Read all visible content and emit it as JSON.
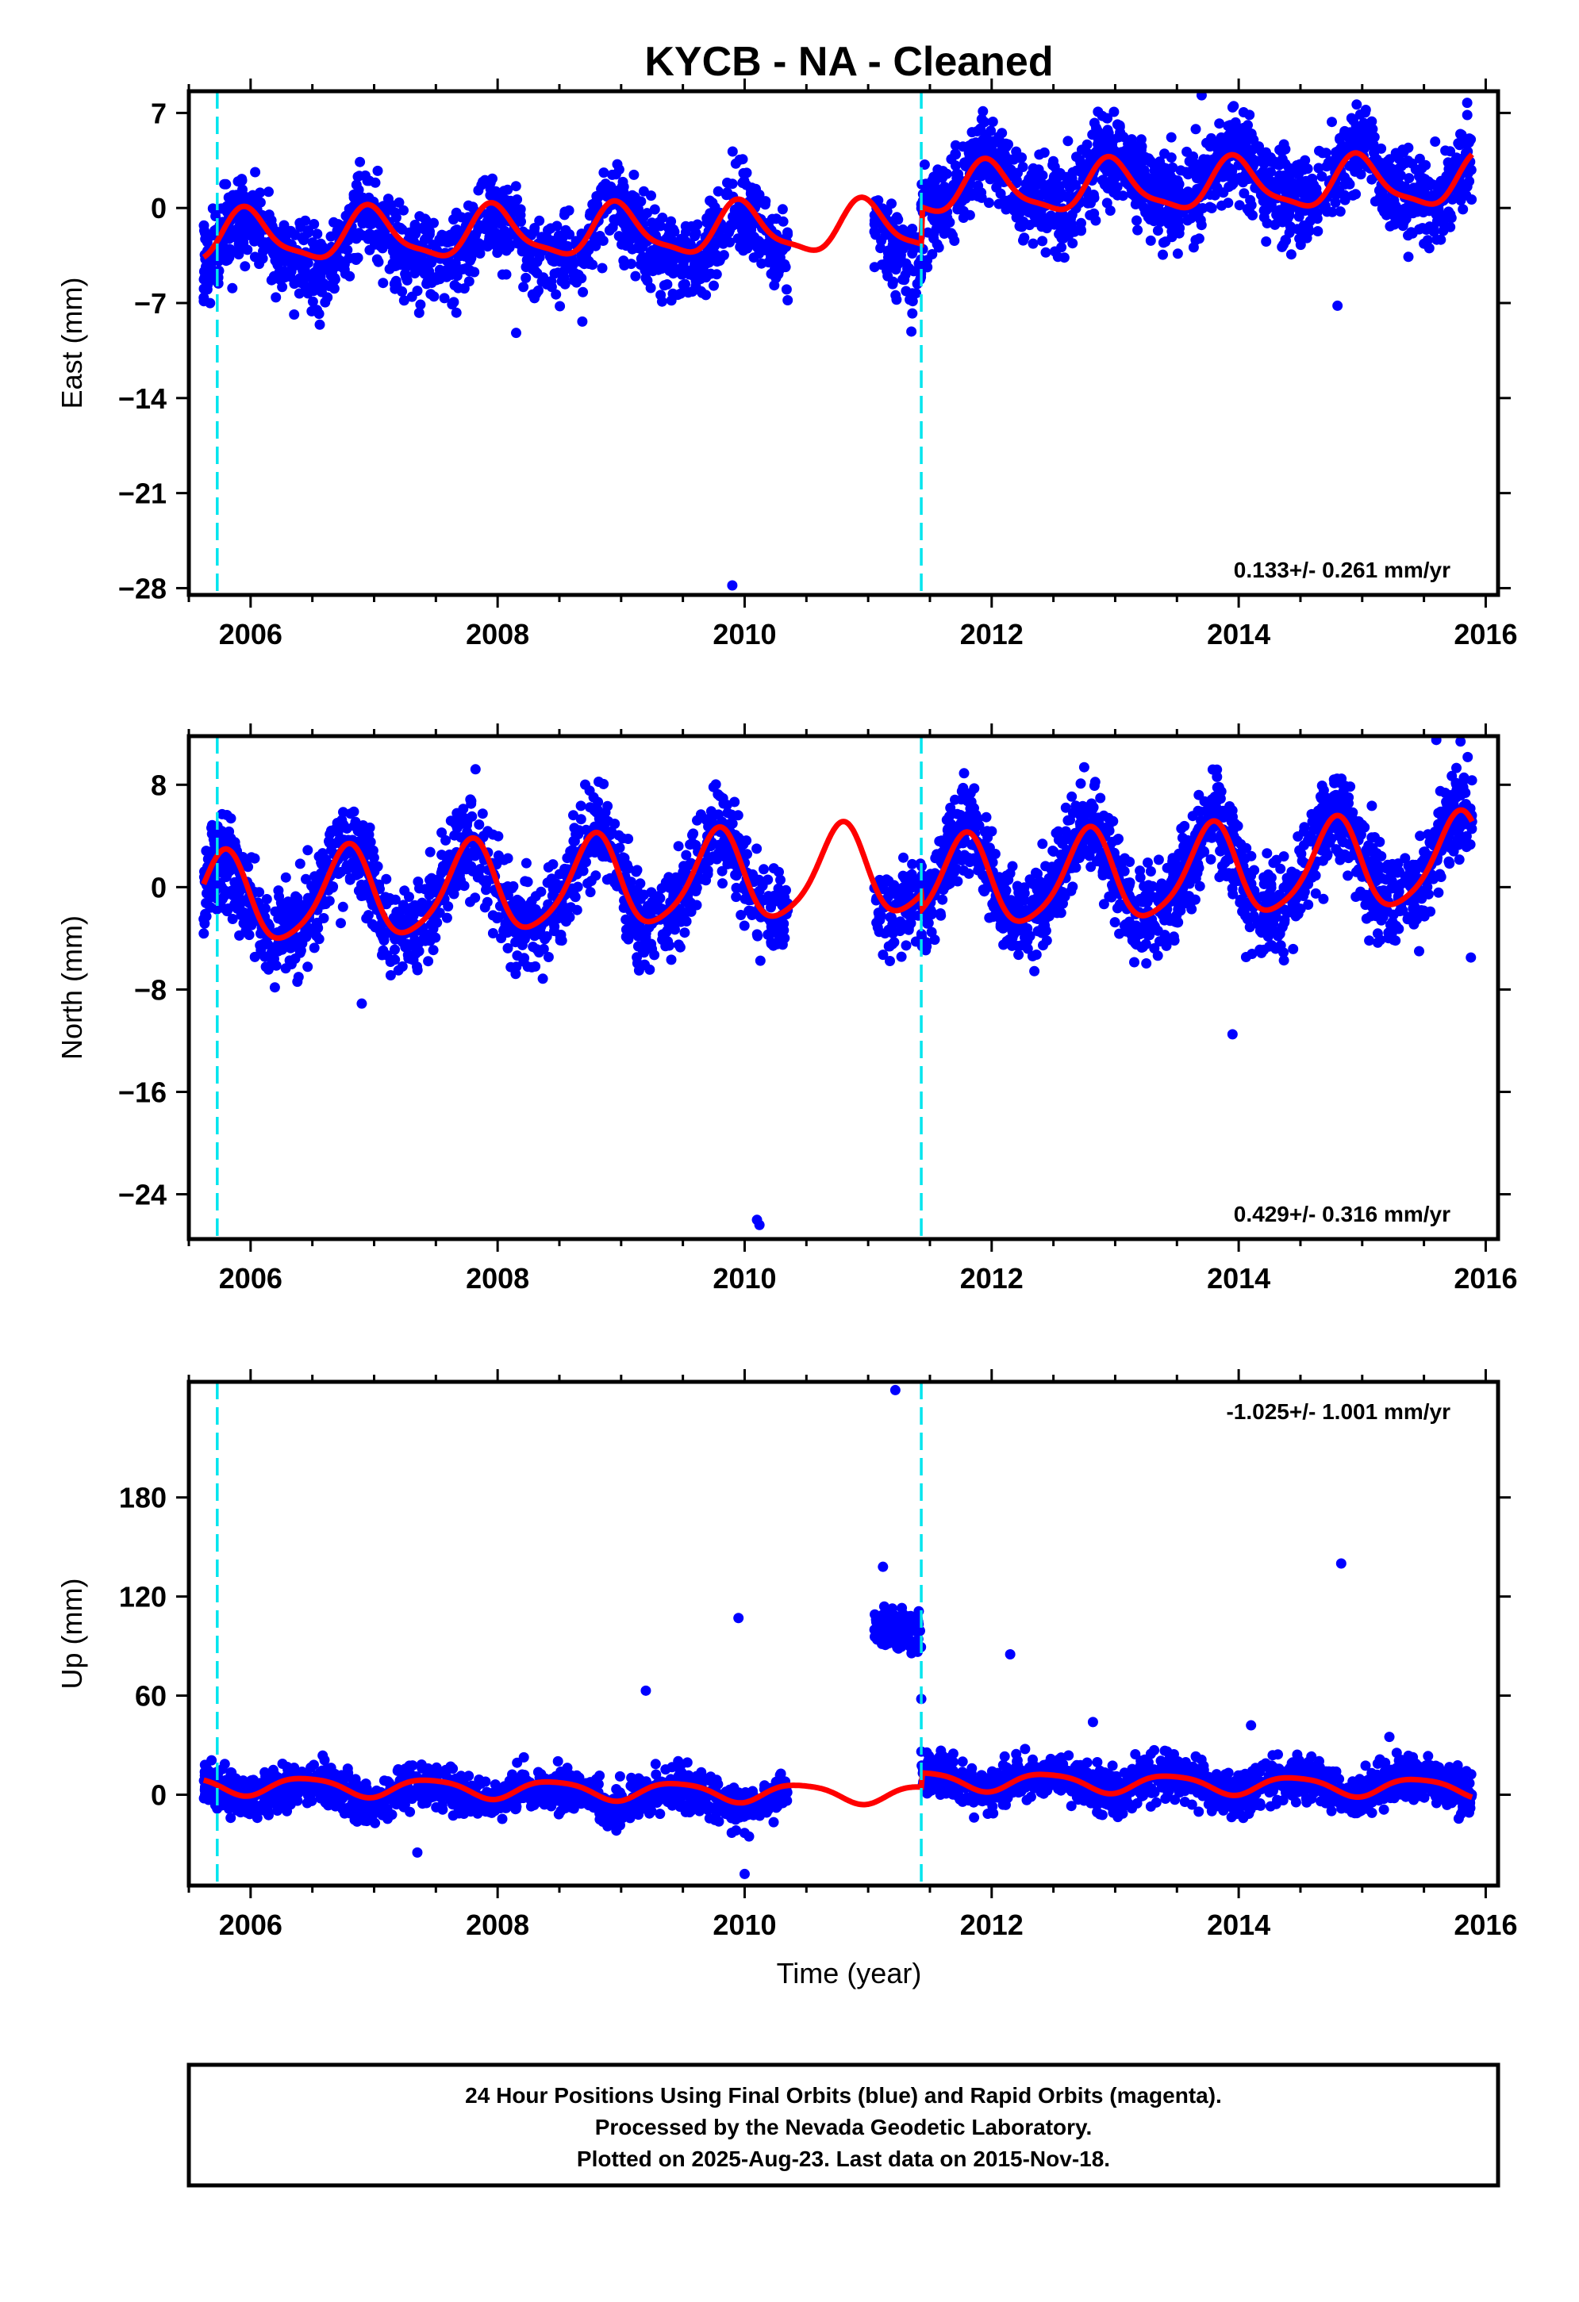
{
  "title": "KYCB  - NA - Cleaned",
  "xlabel": "Time (year)",
  "footer": {
    "line1": "24 Hour Positions Using Final Orbits (blue) and Rapid Orbits (magenta).",
    "line2": "Processed by the Nevada Geodetic Laboratory.",
    "line3": "Plotted on 2025-Aug-23. Last data on 2015-Nov-18."
  },
  "colors": {
    "data": "#0000ff",
    "model": "#ff0000",
    "breaks": "#00e5ee",
    "axes": "#000000"
  },
  "chart_data": [
    {
      "type": "scatter",
      "name": "east",
      "ylabel": "East (mm)",
      "rate_label": "0.133+/- 0.261 mm/yr",
      "xlim": [
        2005.5,
        2016.1
      ],
      "ylim": [
        -28.5,
        8.6
      ],
      "x_ticks": [
        2006,
        2008,
        2010,
        2012,
        2014,
        2016
      ],
      "x_tick_labels": [
        "2006",
        "2008",
        "2010",
        "2012",
        "2014",
        "2016"
      ],
      "y_ticks": [
        7,
        0,
        -7,
        -14,
        -21,
        -28
      ],
      "y_tick_labels": [
        "7",
        "0",
        "−7",
        "−14",
        "−21",
        "−28"
      ],
      "breaks": [
        2005.73,
        2011.43
      ],
      "model": {
        "segments": [
          {
            "x0": 2005.62,
            "x1": 2011.43,
            "offset": -1.8,
            "rate": 0.133,
            "t0": 2008.5
          },
          {
            "x0": 2011.43,
            "x1": 2015.89,
            "offset": 1.6,
            "rate": 0.133,
            "t0": 2013.5
          }
        ],
        "annual_amp": 1.8,
        "annual_phase": 0.72,
        "semi_amp": 0.5,
        "semi_phase": 0.3
      },
      "data_segments": [
        {
          "x0": 2005.62,
          "x1": 2006.05,
          "y_offset": -1.6,
          "n": 180
        },
        {
          "x0": 2006.05,
          "x1": 2010.35,
          "y_offset": -2.0,
          "n": 1200
        },
        {
          "x0": 2011.05,
          "x1": 2011.43,
          "y_offset": -3.8,
          "n": 110
        },
        {
          "x0": 2011.43,
          "x1": 2015.89,
          "y_offset": 1.2,
          "n": 1500
        }
      ],
      "scatter_sd": 1.6,
      "outliers": [
        [
          2009.9,
          -27.8
        ],
        [
          2014.8,
          -7.2
        ],
        [
          2008.15,
          -9.2
        ],
        [
          2013.7,
          8.3
        ],
        [
          2005.65,
          -6.0
        ],
        [
          2011.35,
          -9.1
        ]
      ]
    },
    {
      "type": "scatter",
      "name": "north",
      "ylabel": "North (mm)",
      "rate_label": "0.429+/- 0.316 mm/yr",
      "xlim": [
        2005.5,
        2016.1
      ],
      "ylim": [
        -27.5,
        11.8
      ],
      "x_ticks": [
        2006,
        2008,
        2010,
        2012,
        2014,
        2016
      ],
      "x_tick_labels": [
        "2006",
        "2008",
        "2010",
        "2012",
        "2014",
        "2016"
      ],
      "y_ticks": [
        8,
        0,
        -8,
        -16,
        -24
      ],
      "y_tick_labels": [
        "8",
        "0",
        "−8",
        "−16",
        "−24"
      ],
      "breaks": [
        2005.73,
        2011.43
      ],
      "model": {
        "segments": [
          {
            "x0": 2005.62,
            "x1": 2011.43,
            "offset": 0.1,
            "rate": 0.429,
            "t0": 2008.5
          },
          {
            "x0": 2011.43,
            "x1": 2015.89,
            "offset": 1.0,
            "rate": 0.429,
            "t0": 2013.5
          }
        ],
        "annual_amp": 3.5,
        "annual_phase": 0.53,
        "semi_amp": 0.6,
        "semi_phase": 0.2
      },
      "data_segments": [
        {
          "x0": 2005.62,
          "x1": 2006.05,
          "y_offset": -2.5,
          "n": 180
        },
        {
          "x0": 2006.05,
          "x1": 2010.35,
          "y_offset": 0.0,
          "n": 1200
        },
        {
          "x0": 2011.05,
          "x1": 2011.43,
          "y_offset": 0.0,
          "n": 110
        },
        {
          "x0": 2011.43,
          "x1": 2015.89,
          "y_offset": 0.5,
          "n": 1500
        }
      ],
      "scatter_sd": 1.8,
      "outliers": [
        [
          2010.1,
          -26.0
        ],
        [
          2010.12,
          -26.4
        ],
        [
          2013.95,
          -11.5
        ],
        [
          2015.6,
          11.5
        ],
        [
          2006.9,
          -9.1
        ],
        [
          2015.88,
          -5.5
        ]
      ]
    },
    {
      "type": "scatter",
      "name": "up",
      "ylabel": "Up (mm)",
      "rate_label": "-1.025+/- 1.001 mm/yr",
      "xlim": [
        2005.5,
        2016.1
      ],
      "ylim": [
        -55,
        250
      ],
      "x_ticks": [
        2006,
        2008,
        2010,
        2012,
        2014,
        2016
      ],
      "x_tick_labels": [
        "2006",
        "2008",
        "2010",
        "2012",
        "2014",
        "2016"
      ],
      "y_ticks": [
        180,
        120,
        60,
        0
      ],
      "y_tick_labels": [
        "180",
        "120",
        "60",
        "0"
      ],
      "breaks": [
        2005.73,
        2011.43
      ],
      "model": {
        "segments": [
          {
            "x0": 2005.62,
            "x1": 2011.43,
            "offset": 3.0,
            "rate": -1.025,
            "t0": 2008.5
          },
          {
            "x0": 2011.43,
            "x1": 2015.89,
            "offset": 6.5,
            "rate": -1.025,
            "t0": 2013.5
          }
        ],
        "annual_amp": 5.5,
        "annual_phase": 0.2,
        "semi_amp": 1.0,
        "semi_phase": 0.1
      },
      "data_segments": [
        {
          "x0": 2005.62,
          "x1": 2006.05,
          "y_offset": -4.0,
          "n": 180
        },
        {
          "x0": 2006.05,
          "x1": 2010.35,
          "y_offset": -10.0,
          "n": 1200
        },
        {
          "x0": 2011.05,
          "x1": 2011.43,
          "y_offset": 100.0,
          "n": 110
        },
        {
          "x0": 2011.43,
          "x1": 2015.89,
          "y_offset": 2.0,
          "n": 1500
        }
      ],
      "scatter_sd": 6.5,
      "outliers": [
        [
          2011.22,
          245.0
        ],
        [
          2011.12,
          138.0
        ],
        [
          2014.83,
          140.0
        ],
        [
          2009.95,
          107.0
        ],
        [
          2012.15,
          85.0
        ],
        [
          2009.2,
          63.0
        ],
        [
          2011.43,
          58.0
        ],
        [
          2014.1,
          42.0
        ],
        [
          2012.82,
          44.0
        ],
        [
          2015.22,
          35.0
        ],
        [
          2007.35,
          -35.0
        ],
        [
          2010.0,
          -48.0
        ]
      ]
    }
  ]
}
